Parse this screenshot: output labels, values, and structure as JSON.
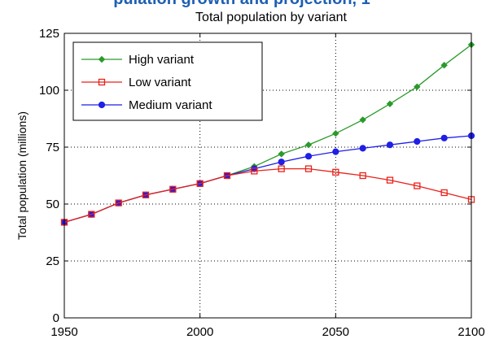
{
  "header": {
    "cut_title": "pulation growth and projection, 1"
  },
  "chart_data": {
    "type": "line",
    "title": "Total population by variant",
    "xlabel": "",
    "ylabel": "Total population (millions)",
    "xlim": [
      1950,
      2100
    ],
    "ylim": [
      0,
      125
    ],
    "xticks": [
      1950,
      2000,
      2050,
      2100
    ],
    "yticks": [
      0,
      25,
      50,
      75,
      100,
      125
    ],
    "grid": "dotted",
    "legend_position": "top-left",
    "series": [
      {
        "name": "High variant",
        "color": "#2a9a2a",
        "marker": "diamond",
        "x": [
          1950,
          1960,
          1970,
          1980,
          1990,
          2000,
          2010,
          2020,
          2030,
          2040,
          2050,
          2060,
          2070,
          2080,
          2090,
          2100
        ],
        "y": [
          42,
          45.5,
          50.5,
          54,
          56.5,
          59,
          62.5,
          66.5,
          72,
          76,
          81,
          87,
          94,
          101.5,
          111,
          120
        ]
      },
      {
        "name": "Low variant",
        "color": "#e8221b",
        "marker": "square",
        "x": [
          1950,
          1960,
          1970,
          1980,
          1990,
          2000,
          2010,
          2020,
          2030,
          2040,
          2050,
          2060,
          2070,
          2080,
          2090,
          2100
        ],
        "y": [
          42,
          45.5,
          50.5,
          54,
          56.5,
          59,
          62.5,
          64.5,
          65.5,
          65.5,
          64,
          62.5,
          60.5,
          58,
          55,
          52
        ]
      },
      {
        "name": "Medium variant",
        "color": "#1f1fe6",
        "marker": "circle",
        "x": [
          1950,
          1960,
          1970,
          1980,
          1990,
          2000,
          2010,
          2020,
          2030,
          2040,
          2050,
          2060,
          2070,
          2080,
          2090,
          2100
        ],
        "y": [
          42,
          45.5,
          50.5,
          54,
          56.5,
          59,
          62.5,
          65.5,
          68.5,
          71,
          73,
          74.5,
          76,
          77.5,
          79,
          80
        ]
      }
    ]
  }
}
